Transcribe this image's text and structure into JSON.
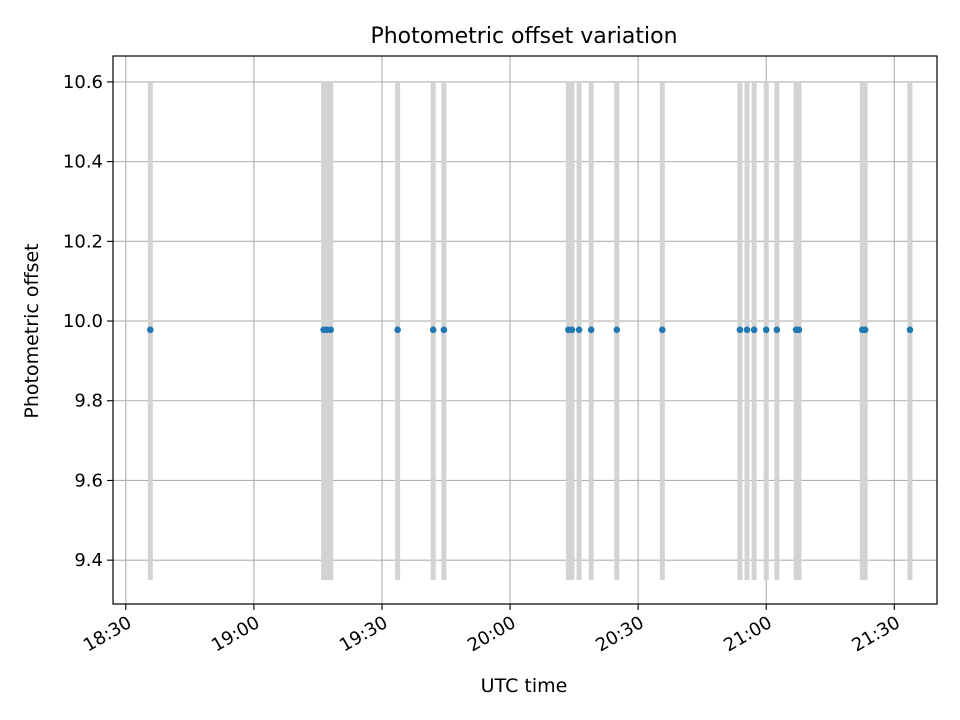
{
  "chart_data": {
    "type": "scatter",
    "title": "Photometric offset variation",
    "xlabel": "UTC time",
    "ylabel": "Photometric offset",
    "xlim": [
      "18:27",
      "21:40"
    ],
    "ylim": [
      9.29,
      10.665
    ],
    "x_ticks": [
      "18:30",
      "19:00",
      "19:30",
      "20:00",
      "20:30",
      "21:00",
      "21:30"
    ],
    "y_ticks": [
      9.4,
      9.6,
      9.8,
      10.0,
      10.2,
      10.4,
      10.6
    ],
    "y_tick_labels": [
      "9.4",
      "9.6",
      "9.8",
      "10.0",
      "10.2",
      "10.4",
      "10.6"
    ],
    "grid": true,
    "colors": {
      "points": "#1f77b4",
      "error_bars": "#d3d3d3",
      "grid": "#b0b0b0"
    },
    "error_bar_range": [
      9.35,
      10.6
    ],
    "series": [
      {
        "x": [
          "18:35:45",
          "19:16:20",
          "19:17:10",
          "19:18:00",
          "19:33:40",
          "19:42:00",
          "19:44:30",
          "20:13:40",
          "20:14:30",
          "20:16:10",
          "20:19:00",
          "20:25:00",
          "20:35:40",
          "20:53:50",
          "20:55:30",
          "20:57:10",
          "21:00:00",
          "21:02:30",
          "21:07:00",
          "21:07:40",
          "21:22:30",
          "21:23:10",
          "21:33:40"
        ],
        "y": [
          9.978,
          9.978,
          9.978,
          9.978,
          9.978,
          9.978,
          9.978,
          9.978,
          9.978,
          9.978,
          9.978,
          9.978,
          9.978,
          9.978,
          9.978,
          9.978,
          9.978,
          9.978,
          9.978,
          9.978,
          9.978,
          9.978,
          9.978
        ]
      }
    ]
  }
}
